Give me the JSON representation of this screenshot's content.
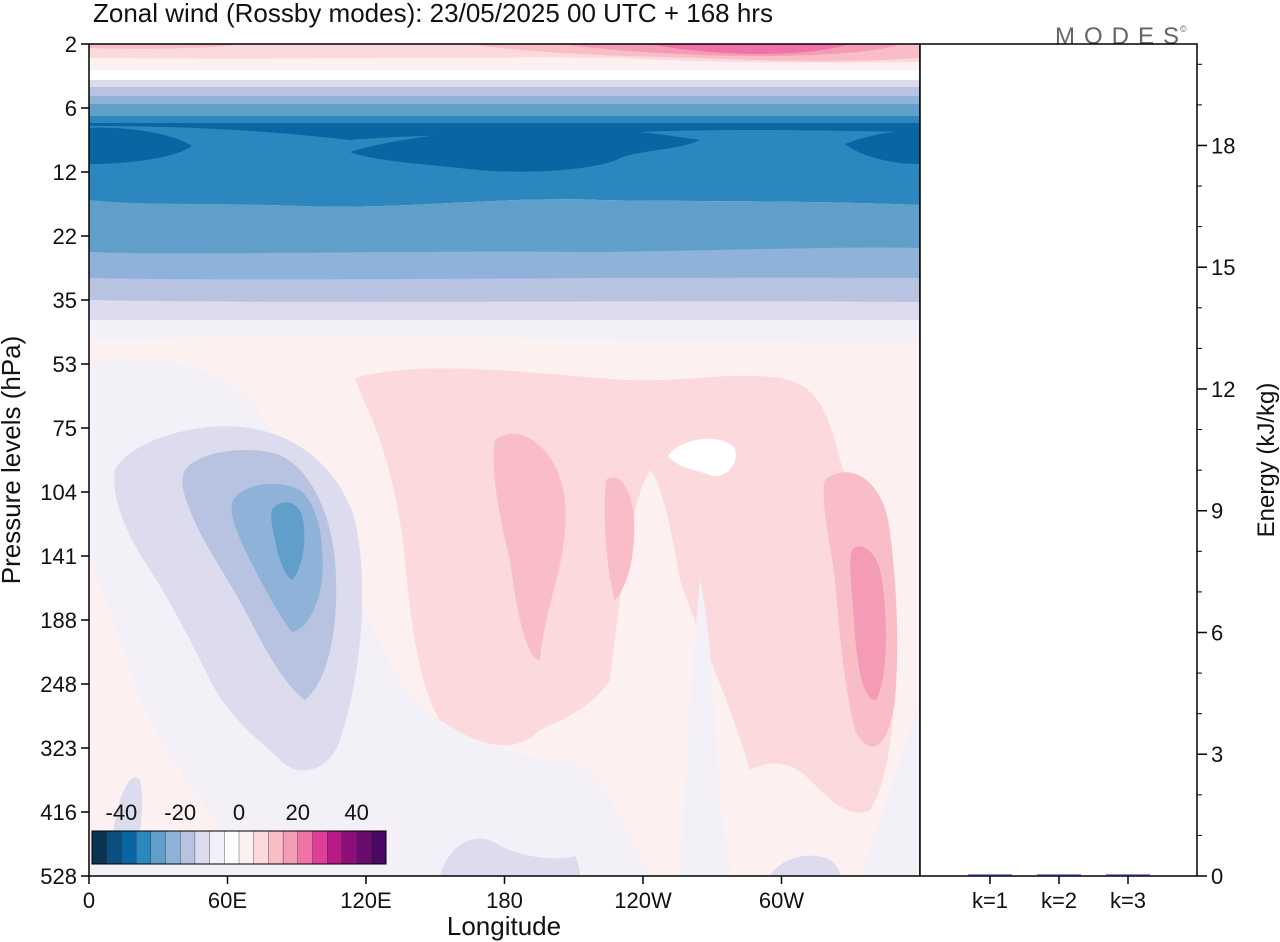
{
  "title": "Zonal wind (Rossby modes):  23/05/2025  00 UTC  + 168 hrs",
  "logo_text": "MODES",
  "logo_mark": "©",
  "chart_data": [
    {
      "type": "heatmap",
      "variable": "Zonal wind (Rossby modes)",
      "xlabel": "Longitude",
      "ylabel": "Pressure levels (hPa)",
      "x_ticks": [
        "0",
        "60E",
        "120E",
        "180",
        "120W",
        "60W"
      ],
      "x_tick_values": [
        0,
        60,
        120,
        180,
        240,
        300
      ],
      "xlim": [
        0,
        360
      ],
      "y_ticks": [
        "2",
        "6",
        "12",
        "22",
        "35",
        "53",
        "75",
        "104",
        "141",
        "188",
        "248",
        "323",
        "416",
        "528"
      ],
      "y_scale": "pressure levels, 2 hPa at top to 528 hPa at bottom",
      "colorbar": {
        "ticks": [
          "-40",
          "-20",
          "0",
          "20",
          "40"
        ],
        "range": [
          -50,
          50
        ],
        "step": 5,
        "colors": [
          "#0b3352",
          "#0a4f7d",
          "#0867a3",
          "#2b87bd",
          "#5f9fca",
          "#8fb3d8",
          "#b8c3e1",
          "#dcdcee",
          "#f4f0f7",
          "#ffffff",
          "#fdf0f0",
          "#fbd9dc",
          "#f8bdc6",
          "#f49cb5",
          "#ef73a6",
          "#de3f98",
          "#b81a86",
          "#8c0f7a",
          "#6a0b6e",
          "#4a0863"
        ]
      },
      "features": [
        {
          "region": "2 hPa, 180-300",
          "sign": "positive",
          "peak": 20
        },
        {
          "region": "6-22 hPa, all longitudes",
          "sign": "negative",
          "peak": -30
        },
        {
          "region": "104-188 hPa, 60E-90E",
          "sign": "negative",
          "peak": -20
        },
        {
          "region": "104-248 hPa, 180-195",
          "sign": "positive",
          "peak": 10
        },
        {
          "region": "104-188 hPa, 210-220",
          "sign": "positive",
          "peak": 10
        },
        {
          "region": "141-248 hPa, 330-340",
          "sign": "positive",
          "peak": 15
        }
      ]
    },
    {
      "type": "bar",
      "categories": [
        "k=1",
        "k=2",
        "k=3"
      ],
      "values": [
        0.03,
        0.02,
        0.03
      ],
      "ylabel": "Energy (kJ/kg)",
      "y_ticks": [
        "0",
        "3",
        "6",
        "9",
        "12",
        "15",
        "18"
      ],
      "ylim": [
        0,
        20.5
      ],
      "bar_color": "#1a237e"
    }
  ]
}
